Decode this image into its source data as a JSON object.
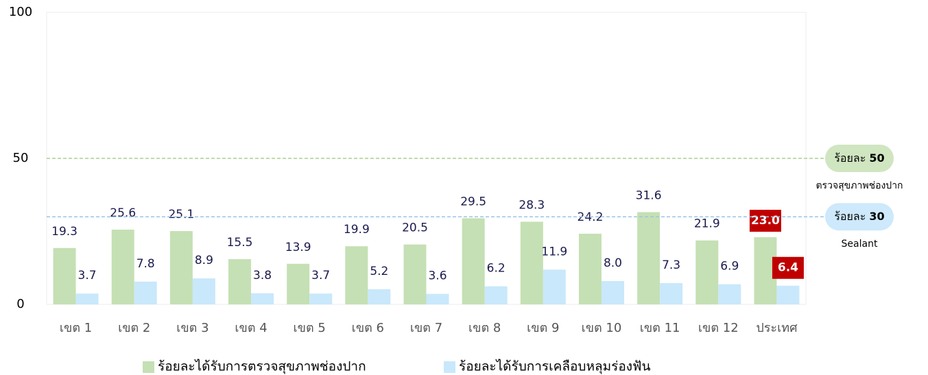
{
  "chart_data": {
    "type": "bar",
    "categories": [
      "เขต 1",
      "เขต 2",
      "เขต 3",
      "เขต 4",
      "เขต 5",
      "เขต 6",
      "เขต 7",
      "เขต 8",
      "เขต 9",
      "เขต 10",
      "เขต 11",
      "เขต 12",
      "ประเทศ"
    ],
    "series": [
      {
        "name": "ร้อยละได้รับการตรวจสุขภาพช่องปาก",
        "color": "#c5e0b4",
        "values": [
          19.3,
          25.6,
          25.1,
          15.5,
          13.9,
          19.9,
          20.5,
          29.5,
          28.3,
          24.2,
          31.6,
          21.9,
          23.0
        ],
        "value_labels": [
          "19.3",
          "25.6",
          "25.1",
          "15.5",
          "13.9",
          "19.9",
          "20.5",
          "29.5",
          "28.3",
          "24.2",
          "31.6",
          "21.9",
          "23.0"
        ]
      },
      {
        "name": "ร้อยละได้รับการเคลือบหลุมร่องฟัน",
        "color": "#c9e8fb",
        "values": [
          3.7,
          7.8,
          8.9,
          3.8,
          3.7,
          5.2,
          3.6,
          6.2,
          11.9,
          8.0,
          7.3,
          6.9,
          6.4
        ],
        "value_labels": [
          "3.7",
          "7.8",
          "8.9",
          "3.8",
          "3.7",
          "5.2",
          "3.6",
          "6.2",
          "11.9",
          "8.0",
          "7.3",
          "6.9",
          "6.4"
        ]
      }
    ],
    "highlight": "ประเทศ",
    "highlight_color": "#c00000",
    "reference_lines": [
      {
        "label": "ร้อยละ",
        "value": 50,
        "note": "ตรวจสุขภาพช่องปาก",
        "color": "#a9d18e",
        "fill": "#cfe6c0"
      },
      {
        "label": "ร้อยละ",
        "value": 30,
        "note": "Sealant",
        "color": "#9dc3e6",
        "fill": "#cde9fb"
      }
    ],
    "ylim": [
      0,
      100
    ],
    "yticks": [
      0,
      50,
      100
    ],
    "legend": "bottom"
  }
}
